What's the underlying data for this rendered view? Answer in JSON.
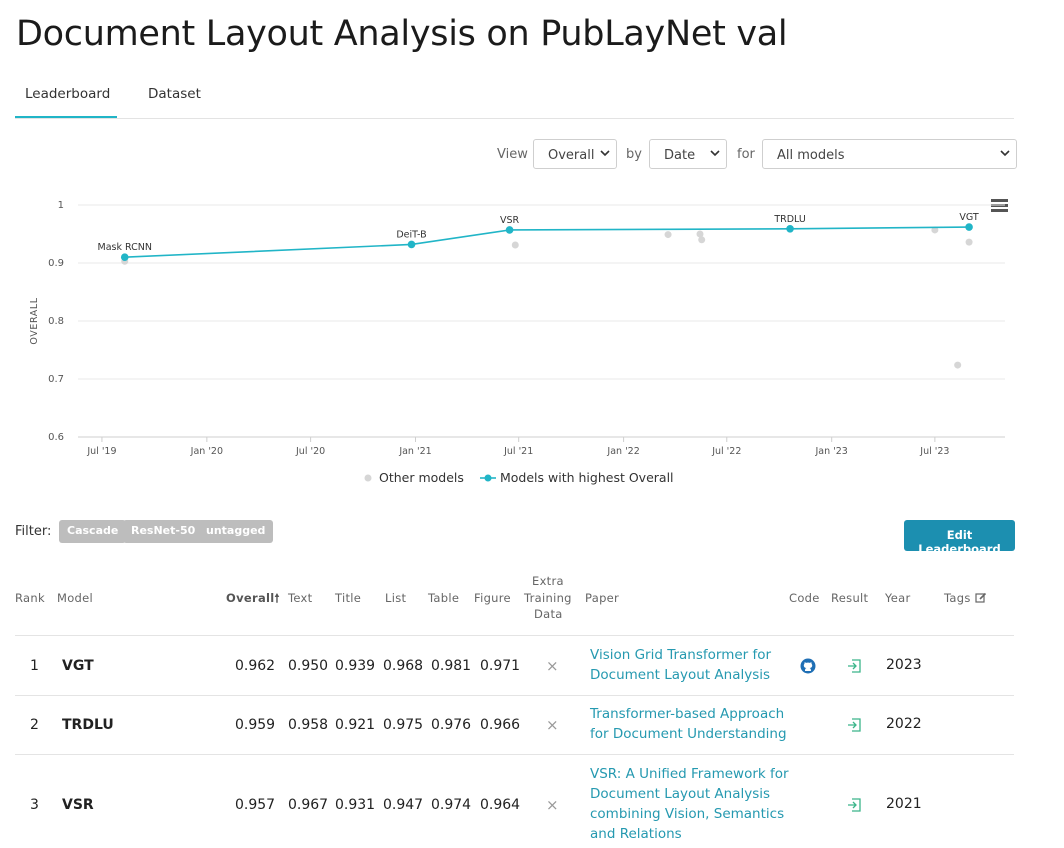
{
  "page": {
    "title": "Document Layout Analysis on PubLayNet val"
  },
  "tabs": [
    {
      "label": "Leaderboard"
    },
    {
      "label": "Dataset"
    }
  ],
  "controls": {
    "view_label": "View",
    "view_value": "Overall",
    "by_label": "by",
    "by_value": "Date",
    "for_label": "for",
    "for_value": "All models"
  },
  "colors": {
    "accent": "#21b5c7",
    "other_models": "#d6d6d6",
    "button": "#1c8fb0",
    "link": "#2599b0"
  },
  "chart_data": {
    "type": "scatter",
    "ylabel": "OVERALL",
    "ylim": [
      0.6,
      1.0
    ],
    "yticks": [
      "0.6",
      "0.7",
      "0.8",
      "0.9",
      "1"
    ],
    "xticks": [
      "Jul '19",
      "Jan '20",
      "Jul '20",
      "Jan '21",
      "Jul '21",
      "Jan '22",
      "Jul '22",
      "Jan '23",
      "Jul '23"
    ],
    "xtick_dates": [
      "2019-07-01",
      "2020-01-01",
      "2020-07-01",
      "2021-01-01",
      "2021-07-01",
      "2022-01-01",
      "2022-07-01",
      "2023-01-01",
      "2023-07-01"
    ],
    "xlim": [
      "2019-05-20",
      "2023-11-01"
    ],
    "grid": true,
    "legend": {
      "position": "bottom",
      "entries": [
        "Other models",
        "Models with highest Overall"
      ]
    },
    "series": [
      {
        "name": "Models with highest Overall",
        "points": [
          {
            "x": "2019-08-10",
            "y": 0.91,
            "label": "Mask RCNN"
          },
          {
            "x": "2020-12-25",
            "y": 0.932,
            "label": "DeiT-B"
          },
          {
            "x": "2021-06-15",
            "y": 0.957,
            "label": "VSR"
          },
          {
            "x": "2022-10-20",
            "y": 0.959,
            "label": "TRDLU"
          },
          {
            "x": "2023-08-30",
            "y": 0.962,
            "label": "VGT"
          }
        ]
      },
      {
        "name": "Other models",
        "points": [
          {
            "x": "2019-08-10",
            "y": 0.903
          },
          {
            "x": "2021-06-25",
            "y": 0.931
          },
          {
            "x": "2022-03-20",
            "y": 0.949
          },
          {
            "x": "2022-05-15",
            "y": 0.95
          },
          {
            "x": "2022-05-18",
            "y": 0.94
          },
          {
            "x": "2023-07-01",
            "y": 0.957
          },
          {
            "x": "2023-08-30",
            "y": 0.936
          },
          {
            "x": "2023-08-10",
            "y": 0.724
          }
        ]
      }
    ]
  },
  "filter": {
    "label": "Filter:",
    "tags": [
      "Cascade",
      "ResNet-50",
      "untagged"
    ]
  },
  "edit_button": "Edit Leaderboard",
  "table": {
    "headers": {
      "rank": "Rank",
      "model": "Model",
      "overall": "Overall",
      "text": "Text",
      "title": "Title",
      "list": "List",
      "table": "Table",
      "figure": "Figure",
      "extra1": "Extra",
      "extra2": "Training",
      "extra3": "Data",
      "paper": "Paper",
      "code": "Code",
      "result": "Result",
      "year": "Year",
      "tags": "Tags"
    },
    "rows": [
      {
        "rank": "1",
        "model": "VGT",
        "overall": "0.962",
        "text": "0.950",
        "title": "0.939",
        "list": "0.968",
        "table": "0.981",
        "figure": "0.971",
        "extra": "×",
        "paper": [
          "Vision Grid Transformer for",
          "Document Layout Analysis"
        ],
        "code": "github-icon",
        "result": "result-link-icon",
        "year": "2023"
      },
      {
        "rank": "2",
        "model": "TRDLU",
        "overall": "0.959",
        "text": "0.958",
        "title": "0.921",
        "list": "0.975",
        "table": "0.976",
        "figure": "0.966",
        "extra": "×",
        "paper": [
          "Transformer-based Approach",
          "for Document Understanding"
        ],
        "code": "",
        "result": "result-link-icon",
        "year": "2022"
      },
      {
        "rank": "3",
        "model": "VSR",
        "overall": "0.957",
        "text": "0.967",
        "title": "0.931",
        "list": "0.947",
        "table": "0.974",
        "figure": "0.964",
        "extra": "×",
        "paper": [
          "VSR: A Unified Framework for",
          "Document Layout Analysis",
          "combining Vision, Semantics",
          "and Relations"
        ],
        "code": "",
        "result": "result-link-icon",
        "year": "2021"
      }
    ]
  }
}
